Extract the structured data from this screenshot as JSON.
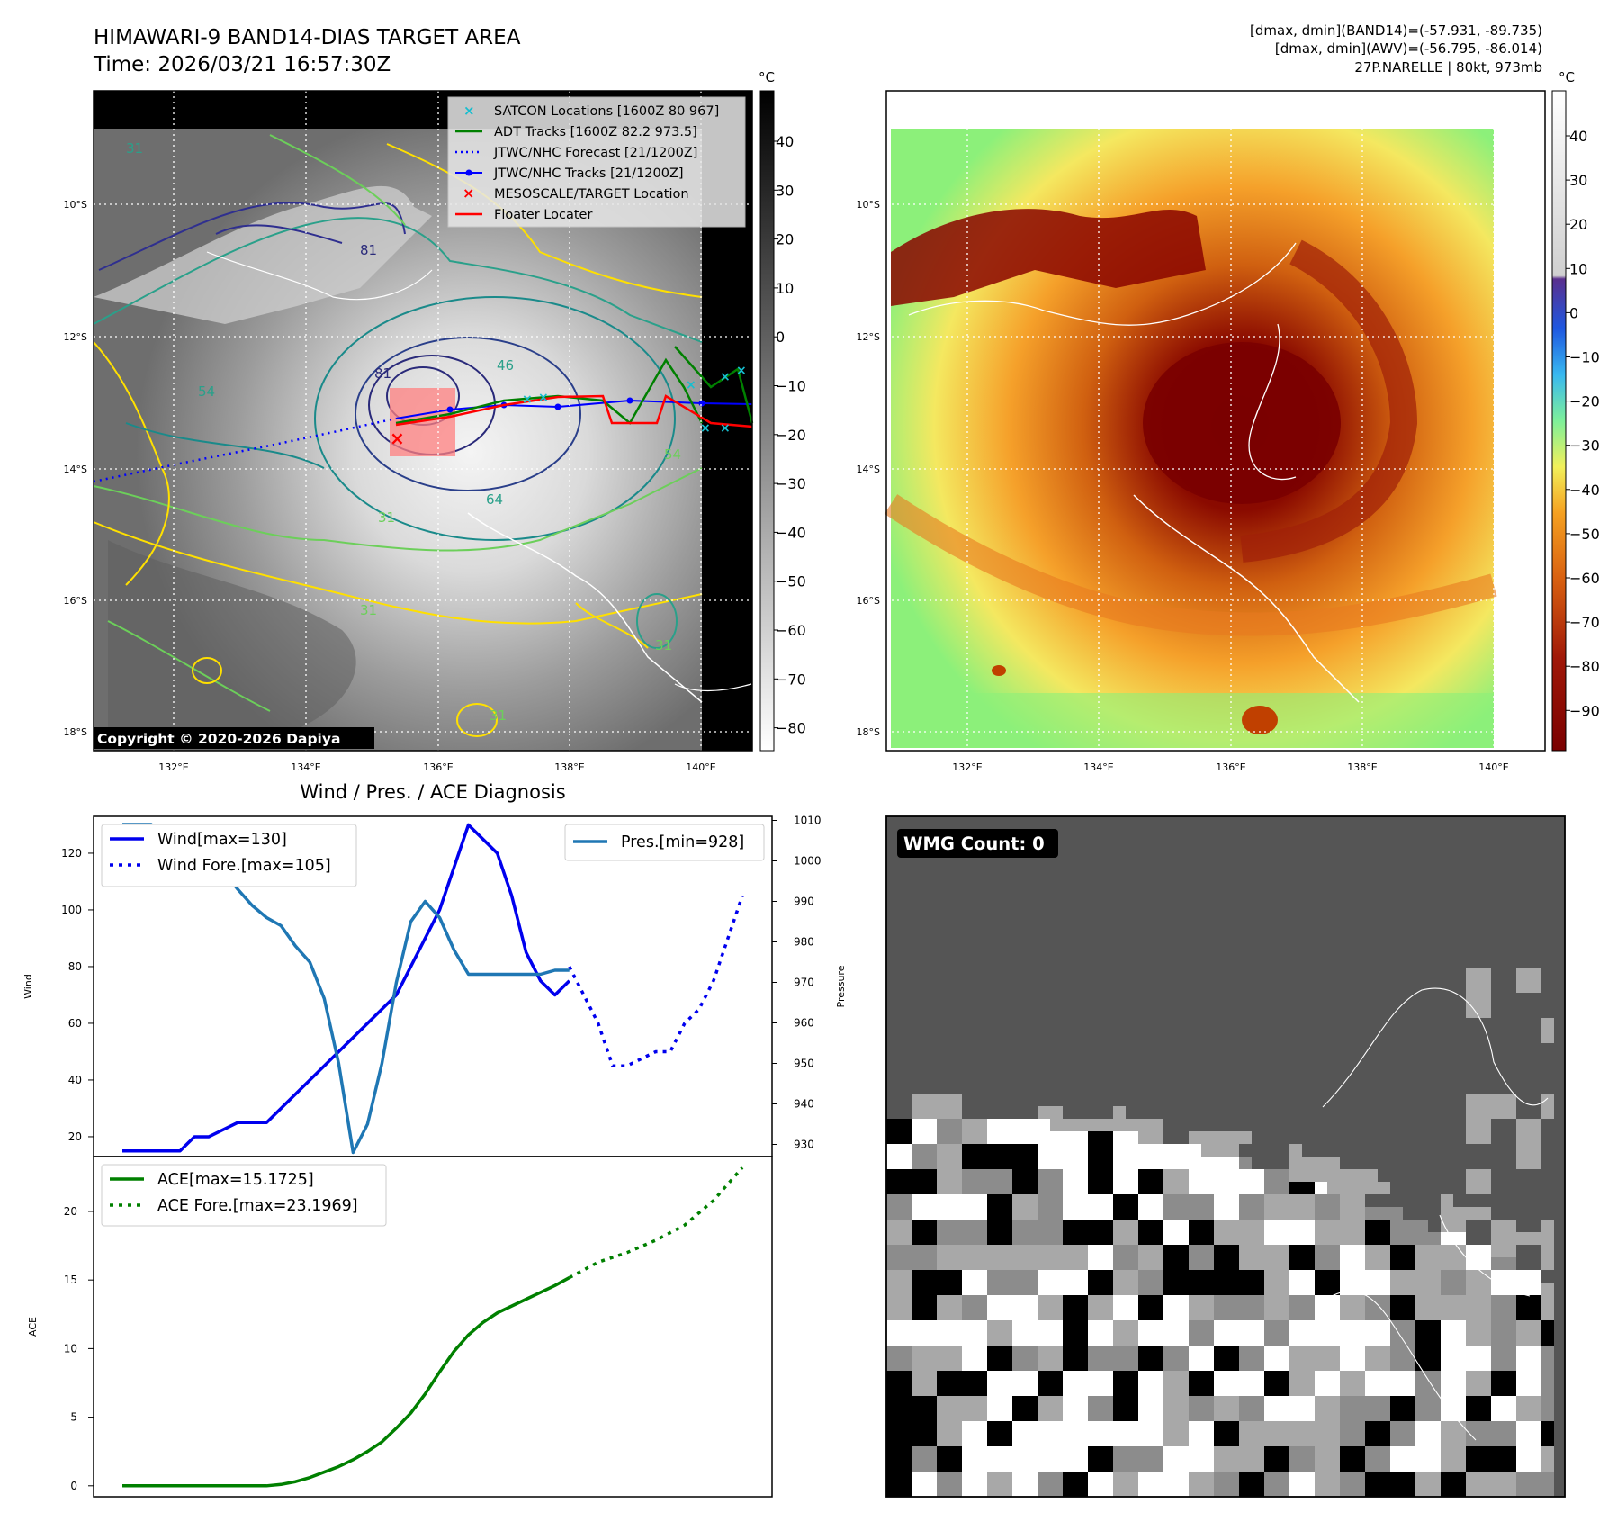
{
  "header": {
    "title_line1": "HIMAWARI-9 BAND14-DIAS TARGET AREA",
    "title_line2": "Time: 2026/03/21 16:57:30Z",
    "info_line1": "[dmax, dmin](BAND14)=(-57.931, -89.735)",
    "info_line2": "[dmax, dmin](AWV)=(-56.795, -86.014)",
    "info_line3": "27P.NARELLE | 80kt, 973mb"
  },
  "map_axes": {
    "lat_labels": [
      "10°S",
      "12°S",
      "14°S",
      "16°S",
      "18°S"
    ],
    "lon_labels": [
      "132°E",
      "134°E",
      "136°E",
      "138°E",
      "140°E"
    ]
  },
  "ir_panel": {
    "colorbar_unit": "°C",
    "colorbar_ticks": [
      "40",
      "30",
      "20",
      "10",
      "0",
      "−10",
      "−20",
      "−30",
      "−40",
      "−50",
      "−60",
      "−70",
      "−80"
    ],
    "copyright": "Copyright © 2020-2026 Dapiya",
    "contour_labels": [
      "81",
      "31",
      "46",
      "54",
      "64",
      "31",
      "54",
      "31",
      "31",
      "31",
      "81"
    ],
    "legend": [
      {
        "label": "SATCON Locations [1600Z 80 967]",
        "color": "#17becf"
      },
      {
        "label": "ADT Tracks [1600Z 82.2 973.5]",
        "color": "#008000"
      },
      {
        "label": "JTWC/NHC Forecast [21/1200Z]",
        "color": "#0000ff"
      },
      {
        "label": "JTWC/NHC Tracks [21/1200Z]",
        "color": "#0000ff"
      },
      {
        "label": "MESOSCALE/TARGET Location",
        "color": "#ff0000"
      },
      {
        "label": "Floater Locater",
        "color": "#ff0000"
      }
    ]
  },
  "color_panel": {
    "colorbar_unit": "°C",
    "colorbar_ticks": [
      "40",
      "30",
      "20",
      "10",
      "0",
      "−10",
      "−20",
      "−30",
      "−40",
      "−50",
      "−60",
      "−70",
      "−80",
      "−90"
    ]
  },
  "wmg_panel": {
    "badge": "WMG Count: 0"
  },
  "diag_panel": {
    "title": "Wind / Pres. / ACE Diagnosis"
  },
  "chart_data": [
    {
      "type": "line",
      "title": "Wind / Pres. / ACE Diagnosis",
      "ylabel": "Wind",
      "ylabel_right": "Pressure",
      "ylim": [
        13,
        133
      ],
      "ylim_right": [
        927,
        1011
      ],
      "yticks": [
        20,
        40,
        60,
        80,
        100,
        120
      ],
      "yticks_right": [
        930,
        940,
        950,
        960,
        970,
        980,
        990,
        1000,
        1010
      ],
      "x_range": [
        0,
        43
      ],
      "series": [
        {
          "name": "Wind[max=130]",
          "color": "#0000ee",
          "style": "solid",
          "axis": "left",
          "x": [
            0,
            3,
            4,
            5,
            6,
            8,
            10,
            11,
            12,
            13,
            14,
            15,
            16,
            17,
            18,
            19,
            20,
            21,
            22,
            23,
            24,
            25,
            26,
            27,
            28,
            29,
            30,
            31
          ],
          "values": [
            15,
            15,
            15,
            20,
            20,
            25,
            25,
            30,
            35,
            40,
            45,
            50,
            55,
            60,
            65,
            70,
            80,
            90,
            100,
            115,
            130,
            125,
            120,
            105,
            85,
            75,
            70,
            75
          ]
        },
        {
          "name": "Wind Fore.[max=105]",
          "color": "#0000ee",
          "style": "dotted",
          "axis": "left",
          "x": [
            31,
            32,
            33,
            34,
            35,
            37,
            38,
            39,
            40,
            41,
            42,
            43
          ],
          "values": [
            80,
            70,
            60,
            45,
            45,
            50,
            50,
            60,
            65,
            75,
            90,
            105
          ]
        },
        {
          "name": "Pres.[min=928]",
          "color": "#1f77b4",
          "style": "solid",
          "axis": "right",
          "x": [
            0,
            2,
            3,
            4,
            5,
            6,
            8,
            9,
            10,
            11,
            12,
            13,
            14,
            15,
            16,
            17,
            18,
            19,
            20,
            21,
            22,
            23,
            24,
            25,
            26,
            27,
            28,
            29,
            30,
            31
          ],
          "values": [
            1009,
            1009,
            1005,
            1005,
            1004,
            1002,
            993,
            989,
            986,
            984,
            979,
            975,
            966,
            950,
            928,
            935,
            950,
            970,
            985,
            990,
            986,
            978,
            972,
            972,
            972,
            972,
            972,
            972,
            973,
            973
          ]
        }
      ],
      "legend_right": "Pres.[min=928]"
    },
    {
      "type": "line",
      "ylabel": "ACE",
      "ylim": [
        -0.8,
        24
      ],
      "yticks": [
        0,
        5,
        10,
        15,
        20
      ],
      "x_range": [
        0,
        43
      ],
      "series": [
        {
          "name": "ACE[max=15.1725]",
          "color": "#008000",
          "style": "solid",
          "x": [
            0,
            2,
            4,
            6,
            8,
            10,
            11,
            12,
            13,
            14,
            15,
            16,
            17,
            18,
            19,
            20,
            21,
            22,
            23,
            24,
            25,
            26,
            27,
            28,
            29,
            30,
            31
          ],
          "values": [
            0,
            0,
            0,
            0,
            0,
            0,
            0.1,
            0.3,
            0.6,
            1.0,
            1.4,
            1.9,
            2.5,
            3.2,
            4.2,
            5.3,
            6.7,
            8.3,
            9.8,
            11.0,
            11.9,
            12.6,
            13.1,
            13.6,
            14.1,
            14.6,
            15.17
          ]
        },
        {
          "name": "ACE Fore.[max=23.1969]",
          "color": "#008000",
          "style": "dotted",
          "x": [
            31,
            33,
            35,
            37,
            39,
            41,
            43
          ],
          "values": [
            15.17,
            16.3,
            17.0,
            17.9,
            19.0,
            20.8,
            23.2
          ]
        }
      ]
    }
  ]
}
